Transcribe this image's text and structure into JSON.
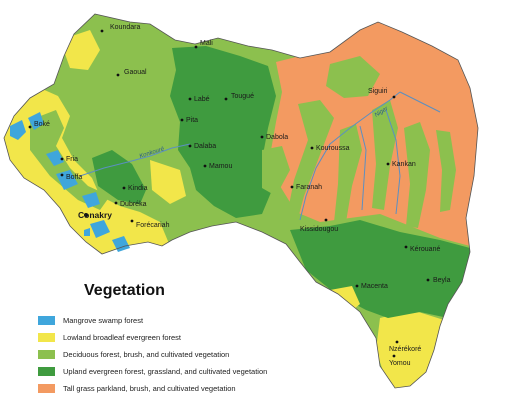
{
  "colors": {
    "mangrove": "#3fa6dc",
    "lowland": "#f2e64a",
    "deciduous": "#8cc04e",
    "upland": "#3f9b3f",
    "tallgrass": "#f39a61",
    "river": "#5b8fc2"
  },
  "legend": {
    "title": "Vegetation",
    "items": [
      {
        "key": "mangrove",
        "label": "Mangrove swamp forest"
      },
      {
        "key": "lowland",
        "label": "Lowland broadleaf evergreen forest"
      },
      {
        "key": "deciduous",
        "label": "Deciduous forest, brush, and cultivated vegetation"
      },
      {
        "key": "upland",
        "label": "Upland evergreen forest, grassland, and cultivated vegetation"
      },
      {
        "key": "tallgrass",
        "label": "Tall grass parkland, brush, and cultivated vegetation"
      }
    ]
  },
  "cities": [
    {
      "name": "Koundara",
      "capital": false
    },
    {
      "name": "Mali",
      "capital": false
    },
    {
      "name": "Gaoual",
      "capital": false
    },
    {
      "name": "Labé",
      "capital": false
    },
    {
      "name": "Tougué",
      "capital": false
    },
    {
      "name": "Pita",
      "capital": false
    },
    {
      "name": "Boké",
      "capital": false
    },
    {
      "name": "Dalaba",
      "capital": false
    },
    {
      "name": "Dabola",
      "capital": false
    },
    {
      "name": "Siguiri",
      "capital": false
    },
    {
      "name": "Kouroussa",
      "capital": false
    },
    {
      "name": "Mamou",
      "capital": false
    },
    {
      "name": "Fria",
      "capital": false
    },
    {
      "name": "Boffa",
      "capital": false
    },
    {
      "name": "Kindia",
      "capital": false
    },
    {
      "name": "Kankan",
      "capital": false
    },
    {
      "name": "Faranah",
      "capital": false
    },
    {
      "name": "Dubréka",
      "capital": false
    },
    {
      "name": "Conakry",
      "capital": true
    },
    {
      "name": "Forécariah",
      "capital": false
    },
    {
      "name": "Kissidougou",
      "capital": false
    },
    {
      "name": "Kérouané",
      "capital": false
    },
    {
      "name": "Beyla",
      "capital": false
    },
    {
      "name": "Macenta",
      "capital": false
    },
    {
      "name": "Nzérékoré",
      "capital": false
    },
    {
      "name": "Yomou",
      "capital": false
    }
  ],
  "rivers": [
    {
      "name": "Konkouré"
    },
    {
      "name": "Niger"
    }
  ]
}
